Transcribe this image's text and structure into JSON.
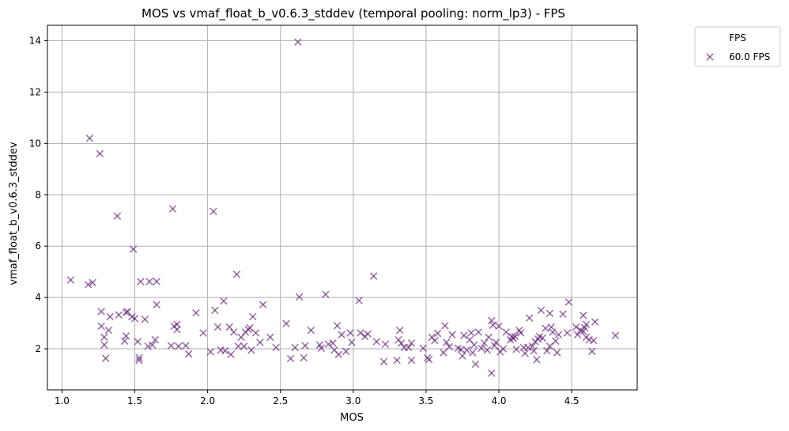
{
  "chart_data": {
    "type": "scatter",
    "title": "MOS vs vmaf_float_b_v0.6.3_stddev (temporal pooling: norm_lp3) - FPS",
    "xlabel": "MOS",
    "ylabel": "vmaf_float_b_v0.6.3_stddev",
    "xlim": [
      0.9,
      4.95
    ],
    "ylim": [
      0.4,
      14.6
    ],
    "xticks": [
      1.0,
      1.5,
      2.0,
      2.5,
      3.0,
      3.5,
      4.0,
      4.5
    ],
    "xtick_labels": [
      "1.0",
      "1.5",
      "2.0",
      "2.5",
      "3.0",
      "3.5",
      "4.0",
      "4.5"
    ],
    "yticks": [
      2,
      4,
      6,
      8,
      10,
      12,
      14
    ],
    "ytick_labels": [
      "2",
      "4",
      "6",
      "8",
      "10",
      "12",
      "14"
    ],
    "grid": true,
    "legend": {
      "title": "FPS",
      "placement": "upper-right-outside"
    },
    "marker": "x",
    "series": [
      {
        "name": "60.0 FPS",
        "color": "#68287c",
        "points": [
          [
            1.06,
            4.68
          ],
          [
            1.18,
            4.5
          ],
          [
            1.19,
            10.2
          ],
          [
            1.21,
            4.58
          ],
          [
            1.26,
            9.6
          ],
          [
            1.27,
            3.45
          ],
          [
            1.27,
            2.88
          ],
          [
            1.29,
            2.45
          ],
          [
            1.29,
            2.15
          ],
          [
            1.3,
            1.63
          ],
          [
            1.32,
            2.72
          ],
          [
            1.33,
            3.25
          ],
          [
            1.38,
            7.17
          ],
          [
            1.39,
            3.32
          ],
          [
            1.43,
            2.3
          ],
          [
            1.44,
            3.42
          ],
          [
            1.44,
            2.5
          ],
          [
            1.45,
            3.45
          ],
          [
            1.48,
            3.25
          ],
          [
            1.49,
            5.88
          ],
          [
            1.5,
            3.18
          ],
          [
            1.52,
            2.28
          ],
          [
            1.53,
            1.65
          ],
          [
            1.53,
            1.55
          ],
          [
            1.54,
            4.62
          ],
          [
            1.57,
            3.15
          ],
          [
            1.59,
            2.1
          ],
          [
            1.6,
            4.62
          ],
          [
            1.62,
            2.15
          ],
          [
            1.64,
            2.35
          ],
          [
            1.65,
            4.62
          ],
          [
            1.65,
            3.72
          ],
          [
            1.75,
            2.12
          ],
          [
            1.76,
            7.45
          ],
          [
            1.77,
            2.88
          ],
          [
            1.79,
            2.75
          ],
          [
            1.79,
            2.95
          ],
          [
            1.8,
            2.1
          ],
          [
            1.85,
            2.12
          ],
          [
            1.87,
            1.8
          ],
          [
            1.92,
            3.4
          ],
          [
            1.97,
            2.62
          ],
          [
            2.02,
            1.88
          ],
          [
            2.04,
            7.35
          ],
          [
            2.05,
            3.5
          ],
          [
            2.07,
            2.85
          ],
          [
            2.09,
            1.95
          ],
          [
            2.11,
            3.86
          ],
          [
            2.12,
            1.92
          ],
          [
            2.15,
            2.85
          ],
          [
            2.16,
            1.78
          ],
          [
            2.18,
            2.65
          ],
          [
            2.2,
            4.9
          ],
          [
            2.21,
            2.1
          ],
          [
            2.23,
            2.45
          ],
          [
            2.25,
            2.1
          ],
          [
            2.26,
            2.65
          ],
          [
            2.28,
            2.75
          ],
          [
            2.29,
            2.82
          ],
          [
            2.3,
            1.95
          ],
          [
            2.31,
            3.25
          ],
          [
            2.33,
            2.62
          ],
          [
            2.36,
            2.25
          ],
          [
            2.38,
            3.72
          ],
          [
            2.43,
            2.45
          ],
          [
            2.47,
            2.05
          ],
          [
            2.54,
            2.98
          ],
          [
            2.57,
            1.62
          ],
          [
            2.6,
            2.05
          ],
          [
            2.62,
            13.95
          ],
          [
            2.63,
            4.02
          ],
          [
            2.66,
            1.65
          ],
          [
            2.67,
            2.12
          ],
          [
            2.71,
            2.72
          ],
          [
            2.77,
            2.15
          ],
          [
            2.78,
            2.02
          ],
          [
            2.81,
            4.12
          ],
          [
            2.83,
            2.18
          ],
          [
            2.86,
            2.22
          ],
          [
            2.87,
            1.95
          ],
          [
            2.89,
            2.9
          ],
          [
            2.9,
            1.78
          ],
          [
            2.92,
            2.55
          ],
          [
            2.95,
            1.9
          ],
          [
            2.98,
            2.62
          ],
          [
            2.99,
            2.25
          ],
          [
            3.04,
            3.88
          ],
          [
            3.05,
            2.62
          ],
          [
            3.08,
            2.48
          ],
          [
            3.1,
            2.58
          ],
          [
            3.14,
            4.83
          ],
          [
            3.16,
            2.28
          ],
          [
            3.21,
            1.5
          ],
          [
            3.22,
            2.18
          ],
          [
            3.3,
            1.55
          ],
          [
            3.31,
            2.35
          ],
          [
            3.32,
            2.72
          ],
          [
            3.33,
            2.22
          ],
          [
            3.35,
            2.05
          ],
          [
            3.38,
            2.05
          ],
          [
            3.4,
            1.55
          ],
          [
            3.4,
            2.22
          ],
          [
            3.48,
            2.02
          ],
          [
            3.51,
            1.65
          ],
          [
            3.52,
            1.58
          ],
          [
            3.54,
            2.45
          ],
          [
            3.56,
            2.32
          ],
          [
            3.58,
            2.6
          ],
          [
            3.62,
            1.85
          ],
          [
            3.63,
            2.9
          ],
          [
            3.64,
            2.25
          ],
          [
            3.66,
            2.08
          ],
          [
            3.68,
            2.55
          ],
          [
            3.72,
            2.02
          ],
          [
            3.74,
            1.98
          ],
          [
            3.75,
            1.72
          ],
          [
            3.76,
            2.52
          ],
          [
            3.78,
            1.95
          ],
          [
            3.8,
            2.35
          ],
          [
            3.81,
            2.62
          ],
          [
            3.82,
            1.85
          ],
          [
            3.83,
            2.15
          ],
          [
            3.84,
            1.4
          ],
          [
            3.86,
            2.65
          ],
          [
            3.88,
            2.02
          ],
          [
            3.9,
            2.22
          ],
          [
            3.92,
            1.95
          ],
          [
            3.93,
            2.45
          ],
          [
            3.95,
            3.1
          ],
          [
            3.95,
            1.05
          ],
          [
            3.96,
            2.92
          ],
          [
            3.97,
            2.12
          ],
          [
            3.98,
            2.25
          ],
          [
            4.0,
            2.88
          ],
          [
            4.01,
            1.88
          ],
          [
            4.03,
            2.0
          ],
          [
            4.05,
            2.65
          ],
          [
            4.08,
            2.35
          ],
          [
            4.09,
            2.48
          ],
          [
            4.1,
            2.4
          ],
          [
            4.11,
            2.48
          ],
          [
            4.12,
            1.98
          ],
          [
            4.14,
            2.72
          ],
          [
            4.15,
            2.62
          ],
          [
            4.17,
            2.05
          ],
          [
            4.18,
            1.82
          ],
          [
            4.2,
            2.05
          ],
          [
            4.21,
            3.2
          ],
          [
            4.23,
            2.1
          ],
          [
            4.24,
            1.92
          ],
          [
            4.25,
            2.28
          ],
          [
            4.26,
            1.58
          ],
          [
            4.27,
            2.38
          ],
          [
            4.28,
            2.48
          ],
          [
            4.29,
            3.5
          ],
          [
            4.3,
            2.42
          ],
          [
            4.32,
            2.8
          ],
          [
            4.33,
            1.92
          ],
          [
            4.35,
            3.38
          ],
          [
            4.35,
            2.1
          ],
          [
            4.36,
            2.85
          ],
          [
            4.37,
            2.65
          ],
          [
            4.39,
            2.3
          ],
          [
            4.4,
            1.85
          ],
          [
            4.41,
            2.55
          ],
          [
            4.44,
            3.35
          ],
          [
            4.47,
            2.62
          ],
          [
            4.48,
            3.82
          ],
          [
            4.53,
            2.85
          ],
          [
            4.54,
            2.55
          ],
          [
            4.56,
            2.72
          ],
          [
            4.58,
            2.68
          ],
          [
            4.58,
            3.3
          ],
          [
            4.59,
            2.82
          ],
          [
            4.6,
            2.45
          ],
          [
            4.6,
            2.95
          ],
          [
            4.62,
            2.35
          ],
          [
            4.64,
            1.9
          ],
          [
            4.65,
            2.32
          ],
          [
            4.66,
            3.05
          ],
          [
            4.8,
            2.52
          ]
        ]
      }
    ]
  }
}
